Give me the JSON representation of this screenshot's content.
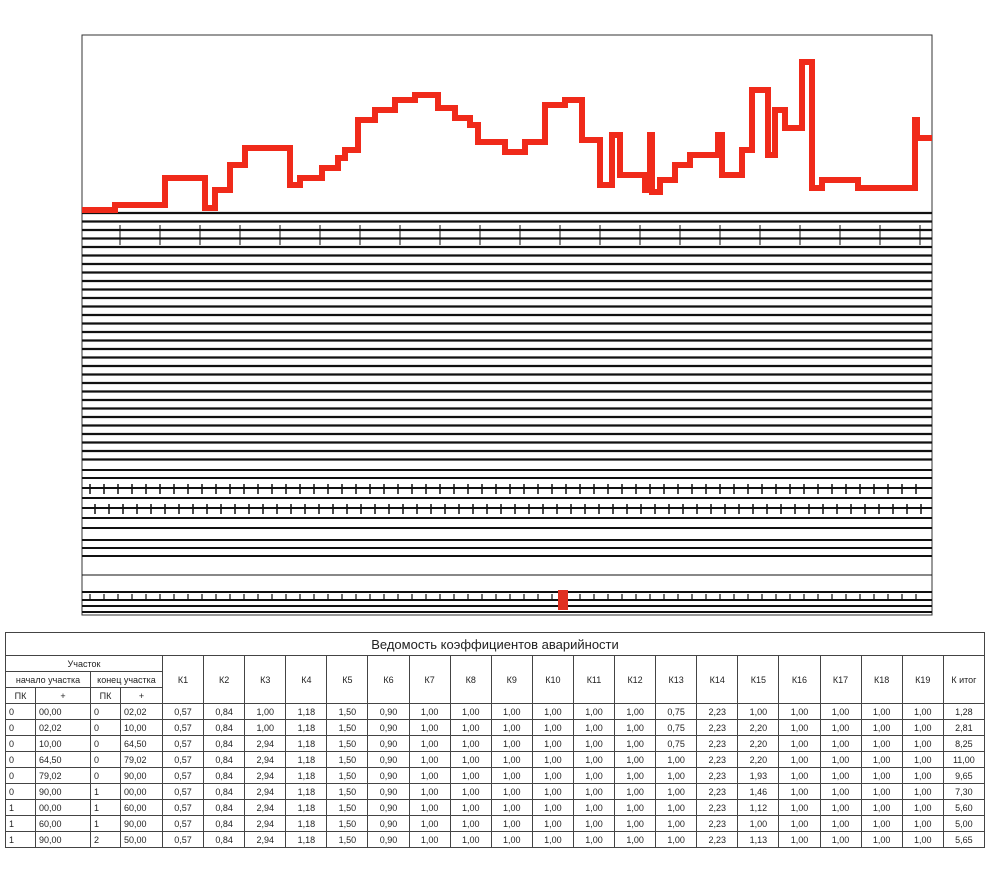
{
  "table": {
    "title": "Ведомость коэффициентов аварийности",
    "section": "Участок",
    "start": "начало участка",
    "end": "конец участка",
    "subheaders": [
      "ПК",
      "+",
      "ПК",
      "+"
    ],
    "columns": [
      "К1",
      "К2",
      "К3",
      "К4",
      "К5",
      "К6",
      "К7",
      "К8",
      "К9",
      "К10",
      "К11",
      "К12",
      "К13",
      "К14",
      "К15",
      "К16",
      "К17",
      "К18",
      "К19",
      "К итог"
    ],
    "rows": [
      [
        "0",
        "00,00",
        "0",
        "02,02",
        "0,57",
        "0,84",
        "1,00",
        "1,18",
        "1,50",
        "0,90",
        "1,00",
        "1,00",
        "1,00",
        "1,00",
        "1,00",
        "1,00",
        "0,75",
        "2,23",
        "1,00",
        "1,00",
        "1,00",
        "1,00",
        "1,00",
        "1,28"
      ],
      [
        "0",
        "02,02",
        "0",
        "10,00",
        "0,57",
        "0,84",
        "1,00",
        "1,18",
        "1,50",
        "0,90",
        "1,00",
        "1,00",
        "1,00",
        "1,00",
        "1,00",
        "1,00",
        "0,75",
        "2,23",
        "2,20",
        "1,00",
        "1,00",
        "1,00",
        "1,00",
        "2,81"
      ],
      [
        "0",
        "10,00",
        "0",
        "64,50",
        "0,57",
        "0,84",
        "2,94",
        "1,18",
        "1,50",
        "0,90",
        "1,00",
        "1,00",
        "1,00",
        "1,00",
        "1,00",
        "1,00",
        "0,75",
        "2,23",
        "2,20",
        "1,00",
        "1,00",
        "1,00",
        "1,00",
        "8,25"
      ],
      [
        "0",
        "64,50",
        "0",
        "79,02",
        "0,57",
        "0,84",
        "2,94",
        "1,18",
        "1,50",
        "0,90",
        "1,00",
        "1,00",
        "1,00",
        "1,00",
        "1,00",
        "1,00",
        "1,00",
        "2,23",
        "2,20",
        "1,00",
        "1,00",
        "1,00",
        "1,00",
        "11,00"
      ],
      [
        "0",
        "79,02",
        "0",
        "90,00",
        "0,57",
        "0,84",
        "2,94",
        "1,18",
        "1,50",
        "0,90",
        "1,00",
        "1,00",
        "1,00",
        "1,00",
        "1,00",
        "1,00",
        "1,00",
        "2,23",
        "1,93",
        "1,00",
        "1,00",
        "1,00",
        "1,00",
        "9,65"
      ],
      [
        "0",
        "90,00",
        "1",
        "00,00",
        "0,57",
        "0,84",
        "2,94",
        "1,18",
        "1,50",
        "0,90",
        "1,00",
        "1,00",
        "1,00",
        "1,00",
        "1,00",
        "1,00",
        "1,00",
        "2,23",
        "1,46",
        "1,00",
        "1,00",
        "1,00",
        "1,00",
        "7,30"
      ],
      [
        "1",
        "00,00",
        "1",
        "60,00",
        "0,57",
        "0,84",
        "2,94",
        "1,18",
        "1,50",
        "0,90",
        "1,00",
        "1,00",
        "1,00",
        "1,00",
        "1,00",
        "1,00",
        "1,00",
        "2,23",
        "1,12",
        "1,00",
        "1,00",
        "1,00",
        "1,00",
        "5,60"
      ],
      [
        "1",
        "60,00",
        "1",
        "90,00",
        "0,57",
        "0,84",
        "2,94",
        "1,18",
        "1,50",
        "0,90",
        "1,00",
        "1,00",
        "1,00",
        "1,00",
        "1,00",
        "1,00",
        "1,00",
        "2,23",
        "1,00",
        "1,00",
        "1,00",
        "1,00",
        "1,00",
        "5,00"
      ],
      [
        "1",
        "90,00",
        "2",
        "50,00",
        "0,57",
        "0,84",
        "2,94",
        "1,18",
        "1,50",
        "0,90",
        "1,00",
        "1,00",
        "1,00",
        "1,00",
        "1,00",
        "1,00",
        "1,00",
        "2,23",
        "1,13",
        "1,00",
        "1,00",
        "1,00",
        "1,00",
        "5,65"
      ]
    ]
  }
}
